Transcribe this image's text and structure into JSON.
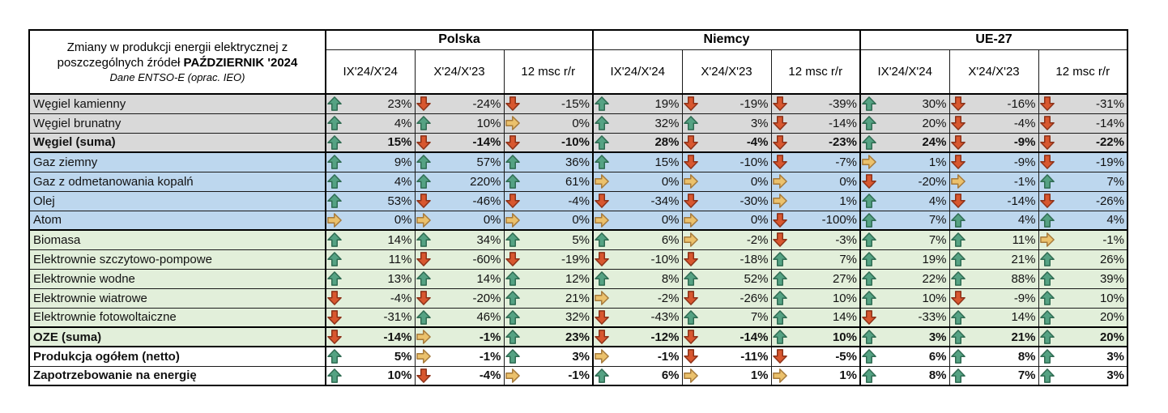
{
  "title": {
    "line1": "Zmiany w produkcji energii elektrycznej z",
    "line2_normal": "poszczególnych źródeł ",
    "line2_bold": "PAŹDZIERNIK '2024",
    "line3": "Dane ENTSO-E (oprac. IEO)"
  },
  "colors": {
    "band_coal": "#D9D9D9",
    "band_fossil": "#BDD7EE",
    "band_renewable": "#E2EFDA",
    "band_total": "#FFFFFF",
    "arrows": {
      "up": {
        "fill": "#55A283",
        "stroke": "#2F6B52"
      },
      "down": {
        "fill": "#D8572F",
        "stroke": "#8C3118"
      },
      "flat": {
        "fill": "#EBC16C",
        "stroke": "#A5793A"
      }
    }
  },
  "chart_data": {
    "type": "table",
    "title": "Zmiany w produkcji energii elektrycznej z poszczególnych źródeł PAŹDZIERNIK '2024 — Dane ENTSO-E (oprac. IEO)",
    "column_groups": [
      {
        "label": "Polska",
        "subcolumns": [
          "IX'24/X'24",
          "X'24/X'23",
          "12 msc r/r"
        ]
      },
      {
        "label": "Niemcy",
        "subcolumns": [
          "IX'24/X'24",
          "X'24/X'23",
          "12 msc r/r"
        ]
      },
      {
        "label": "UE-27",
        "subcolumns": [
          "IX'24/X'24",
          "X'24/X'23",
          "12 msc r/r"
        ]
      }
    ],
    "rows": [
      {
        "label": "Węgiel kamienny",
        "group": "coal",
        "bold": false,
        "section_end": false,
        "trends": [
          "up",
          "down",
          "down",
          "up",
          "down",
          "down",
          "up",
          "down",
          "down"
        ],
        "values_pct": [
          23,
          -24,
          -15,
          19,
          -19,
          -39,
          30,
          -16,
          -31
        ]
      },
      {
        "label": "Węgiel brunatny",
        "group": "coal",
        "bold": false,
        "section_end": false,
        "trends": [
          "up",
          "up",
          "flat",
          "up",
          "up",
          "down",
          "up",
          "down",
          "down"
        ],
        "values_pct": [
          4,
          10,
          0,
          32,
          3,
          -14,
          20,
          -4,
          -14
        ]
      },
      {
        "label": "Węgiel (suma)",
        "group": "coal",
        "bold": true,
        "section_end": true,
        "trends": [
          "up",
          "down",
          "down",
          "up",
          "down",
          "down",
          "up",
          "down",
          "down"
        ],
        "values_pct": [
          15,
          -14,
          -10,
          28,
          -4,
          -23,
          24,
          -9,
          -22
        ]
      },
      {
        "label": "Gaz ziemny",
        "group": "fossil",
        "bold": false,
        "section_end": false,
        "trends": [
          "up",
          "up",
          "up",
          "up",
          "down",
          "down",
          "flat",
          "down",
          "down"
        ],
        "values_pct": [
          9,
          57,
          36,
          15,
          -10,
          -7,
          1,
          -9,
          -19
        ]
      },
      {
        "label": "Gaz z odmetanowania kopalń",
        "group": "fossil",
        "bold": false,
        "section_end": false,
        "trends": [
          "up",
          "up",
          "up",
          "flat",
          "flat",
          "flat",
          "down",
          "flat",
          "up"
        ],
        "values_pct": [
          4,
          220,
          61,
          0,
          0,
          0,
          -20,
          -1,
          7
        ]
      },
      {
        "label": "Olej",
        "group": "fossil",
        "bold": false,
        "section_end": false,
        "trends": [
          "up",
          "down",
          "down",
          "down",
          "down",
          "flat",
          "up",
          "down",
          "down"
        ],
        "values_pct": [
          53,
          -46,
          -4,
          -34,
          -30,
          1,
          4,
          -14,
          -26
        ]
      },
      {
        "label": "Atom",
        "group": "fossil",
        "bold": false,
        "section_end": true,
        "trends": [
          "flat",
          "flat",
          "flat",
          "flat",
          "flat",
          "down",
          "up",
          "up",
          "up"
        ],
        "values_pct": [
          0,
          0,
          0,
          0,
          0,
          -100,
          7,
          4,
          4
        ]
      },
      {
        "label": "Biomasa",
        "group": "renewable",
        "bold": false,
        "section_end": false,
        "trends": [
          "up",
          "up",
          "up",
          "up",
          "flat",
          "down",
          "up",
          "up",
          "flat"
        ],
        "values_pct": [
          14,
          34,
          5,
          6,
          -2,
          -3,
          7,
          11,
          -1
        ]
      },
      {
        "label": "Elektrownie szczytowo-pompowe",
        "group": "renewable",
        "bold": false,
        "section_end": false,
        "trends": [
          "up",
          "down",
          "down",
          "down",
          "down",
          "up",
          "up",
          "up",
          "up"
        ],
        "values_pct": [
          11,
          -60,
          -19,
          -10,
          -18,
          7,
          19,
          21,
          26
        ]
      },
      {
        "label": "Elektrownie wodne",
        "group": "renewable",
        "bold": false,
        "section_end": false,
        "trends": [
          "up",
          "up",
          "up",
          "up",
          "up",
          "up",
          "up",
          "up",
          "up"
        ],
        "values_pct": [
          13,
          14,
          12,
          8,
          52,
          27,
          22,
          88,
          39
        ]
      },
      {
        "label": "Elektrownie wiatrowe",
        "group": "renewable",
        "bold": false,
        "section_end": false,
        "trends": [
          "down",
          "down",
          "up",
          "flat",
          "down",
          "up",
          "up",
          "down",
          "up"
        ],
        "values_pct": [
          -4,
          -20,
          21,
          -2,
          -26,
          10,
          10,
          -9,
          10
        ]
      },
      {
        "label": "Elektrownie fotowoltaiczne",
        "group": "renewable",
        "bold": false,
        "section_end": true,
        "trends": [
          "down",
          "up",
          "up",
          "down",
          "up",
          "up",
          "down",
          "up",
          "up"
        ],
        "values_pct": [
          -31,
          46,
          32,
          -43,
          7,
          14,
          -33,
          14,
          20
        ]
      },
      {
        "label": "OZE (suma)",
        "group": "renewable",
        "bold": true,
        "section_end": true,
        "trends": [
          "down",
          "flat",
          "up",
          "down",
          "down",
          "up",
          "up",
          "up",
          "up"
        ],
        "values_pct": [
          -14,
          -1,
          23,
          -12,
          -14,
          10,
          3,
          21,
          20
        ]
      },
      {
        "label": "Produkcja ogółem (netto)",
        "group": "total",
        "bold": true,
        "section_end": false,
        "trends": [
          "up",
          "flat",
          "up",
          "flat",
          "down",
          "down",
          "up",
          "up",
          "up"
        ],
        "values_pct": [
          5,
          -1,
          3,
          -1,
          -11,
          -5,
          6,
          8,
          3
        ]
      },
      {
        "label": "Zapotrzebowanie na energię",
        "group": "total",
        "bold": true,
        "section_end": false,
        "trends": [
          "up",
          "down",
          "flat",
          "up",
          "flat",
          "flat",
          "up",
          "up",
          "up"
        ],
        "values_pct": [
          10,
          -4,
          -1,
          6,
          1,
          1,
          8,
          7,
          3
        ]
      }
    ]
  }
}
